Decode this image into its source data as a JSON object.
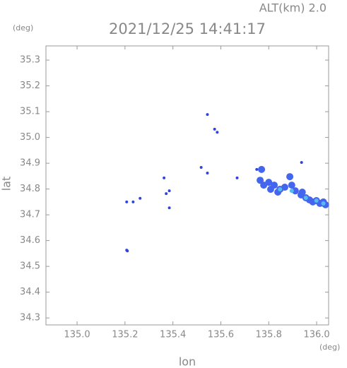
{
  "header": "ALT(km)  2.0",
  "y_unit": "(deg)",
  "x_unit": "(deg)",
  "chart_data": {
    "type": "scatter",
    "title": "2021/12/25 14:41:17",
    "x_label": "lon",
    "y_label": "lat",
    "xlim": [
      134.87,
      136.05
    ],
    "ylim": [
      34.273,
      35.355
    ],
    "xticks": [
      {
        "value": 135.0,
        "label": "135.0"
      },
      135.2,
      135.4,
      135.6,
      135.8,
      {
        "value": 136.0,
        "label": "136.0"
      }
    ],
    "yticks": [
      34.3,
      34.4,
      34.5,
      34.6,
      34.7,
      34.8,
      34.9,
      {
        "value": 35.0,
        "label": "35.0"
      },
      35.1,
      35.2,
      35.3
    ],
    "series": [
      {
        "color": "#3344dd",
        "x": [
          135.207,
          135.234,
          135.263,
          135.363,
          135.372,
          135.385,
          135.385,
          135.544,
          135.574,
          135.585,
          135.518,
          135.544,
          135.668,
          135.207,
          135.21,
          135.937,
          135.75
        ],
        "values": [
          34.75,
          34.75,
          34.764,
          34.843,
          34.782,
          34.793,
          34.727,
          35.089,
          35.032,
          35.02,
          34.884,
          34.862,
          34.843,
          34.563,
          34.56,
          34.903,
          34.876
        ]
      },
      {
        "color": "#4466ee",
        "x": [
          135.764,
          135.779,
          135.8,
          135.823,
          135.847,
          135.867,
          135.888,
          135.896,
          135.911,
          135.935,
          135.955,
          135.97,
          135.984,
          135.999,
          136.014,
          136.028,
          136.037,
          135.808,
          135.838,
          135.94,
          135.77
        ],
        "values": [
          34.834,
          34.815,
          34.826,
          34.815,
          34.799,
          34.807,
          34.848,
          34.815,
          34.793,
          34.777,
          34.766,
          34.758,
          34.75,
          34.755,
          34.744,
          34.75,
          34.739,
          34.799,
          34.788,
          34.788,
          34.876
        ]
      },
      {
        "color": "#55bbee",
        "x": [
          135.847,
          135.896,
          135.955,
          135.999,
          136.028
        ],
        "values": [
          34.799,
          34.793,
          34.766,
          34.755,
          34.744
        ]
      }
    ]
  }
}
